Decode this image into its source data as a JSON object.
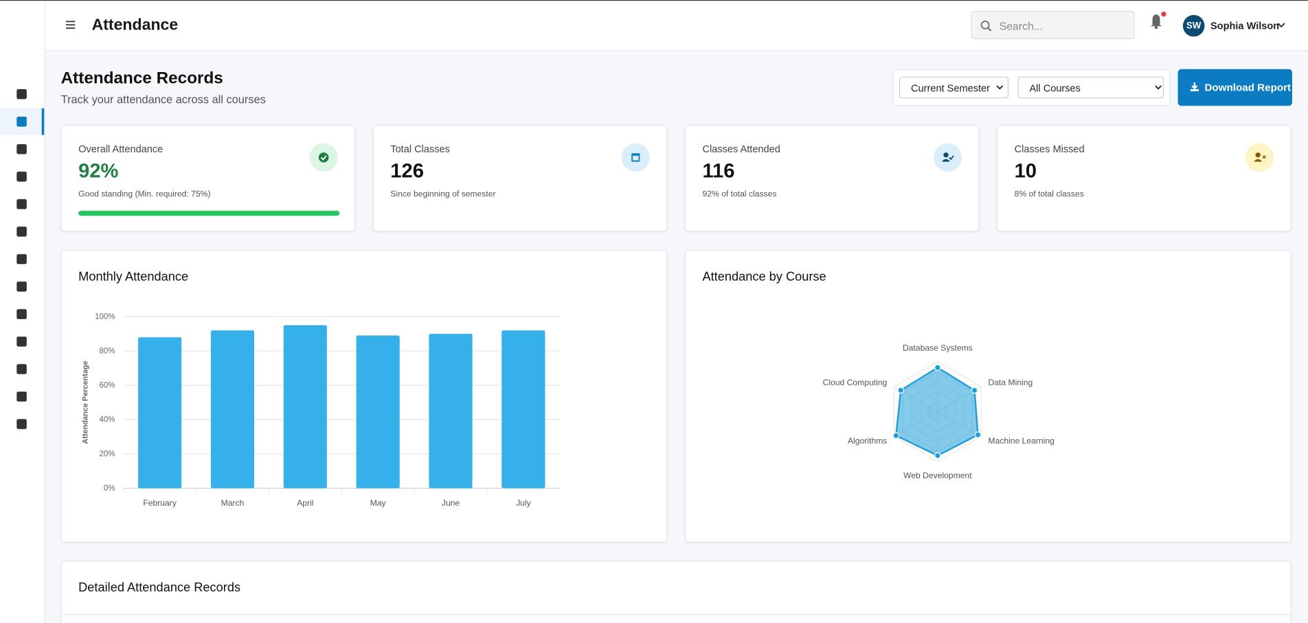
{
  "header": {
    "title": "Attendance",
    "search_placeholder": "Search...",
    "user_initials": "SW",
    "user_name": "Sophia Wilson"
  },
  "page": {
    "title": "Attendance Records",
    "subtitle": "Track your attendance across all courses",
    "filters": [
      "Current Semester",
      "All Courses"
    ],
    "button": "Download Report"
  },
  "stats": [
    {
      "label": "Overall Attendance",
      "value": "92%",
      "note": "Good standing (Min. required: 75%)"
    },
    {
      "label": "Total Classes",
      "value": "126",
      "note": "Since beginning of semester"
    },
    {
      "label": "Classes Attended",
      "value": "116",
      "note": "92% of total classes"
    },
    {
      "label": "Classes Missed",
      "value": "10",
      "note": "8% of total classes"
    }
  ],
  "chart_data": [
    {
      "type": "bar",
      "title": "Monthly Attendance",
      "y_label": "Attendance Percentage",
      "categories": [
        "February",
        "March",
        "April",
        "May",
        "June",
        "July"
      ],
      "values": [
        88,
        92,
        95,
        89,
        90,
        92
      ],
      "color": "#36b0e8",
      "ylim": [
        0,
        100
      ],
      "yticks": [
        {
          "value": 0,
          "label": "0%"
        },
        {
          "value": 20,
          "label": "20%"
        },
        {
          "value": 40,
          "label": "40%"
        },
        {
          "value": 60,
          "label": "60%"
        },
        {
          "value": 80,
          "label": "80%"
        },
        {
          "value": 100,
          "label": "100%"
        }
      ],
      "grid": true
    },
    {
      "type": "radar",
      "title": "Attendance by Course",
      "categories": [
        "Database Systems",
        "Data Mining",
        "Machine Learning",
        "Web Development",
        "Algorithms",
        "Cloud Computing"
      ],
      "values": [
        88,
        85,
        93,
        88,
        96,
        85
      ],
      "color": "#1e9fd8",
      "rlim": [
        0,
        100
      ]
    }
  ],
  "details": {
    "title": "Detailed Attendance Records"
  }
}
